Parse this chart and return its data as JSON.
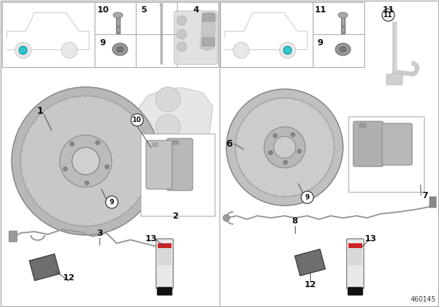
{
  "bg": "#ffffff",
  "part_number": "460145",
  "divider_color": "#aaaaaa",
  "border_color": "#aaaaaa",
  "teal": "#30c8c8",
  "label_color": "#111111",
  "part_gray_light": "#d8d8d8",
  "part_gray_mid": "#b8b8b8",
  "part_gray_dark": "#888888",
  "can_body": "#e8e8e8",
  "can_cap": "#111111",
  "can_red": "#cc2222",
  "wire_color": "#999999",
  "packet_color": "#606060",
  "box_edge": "#aaaaaa",
  "car_outline": "#cccccc"
}
